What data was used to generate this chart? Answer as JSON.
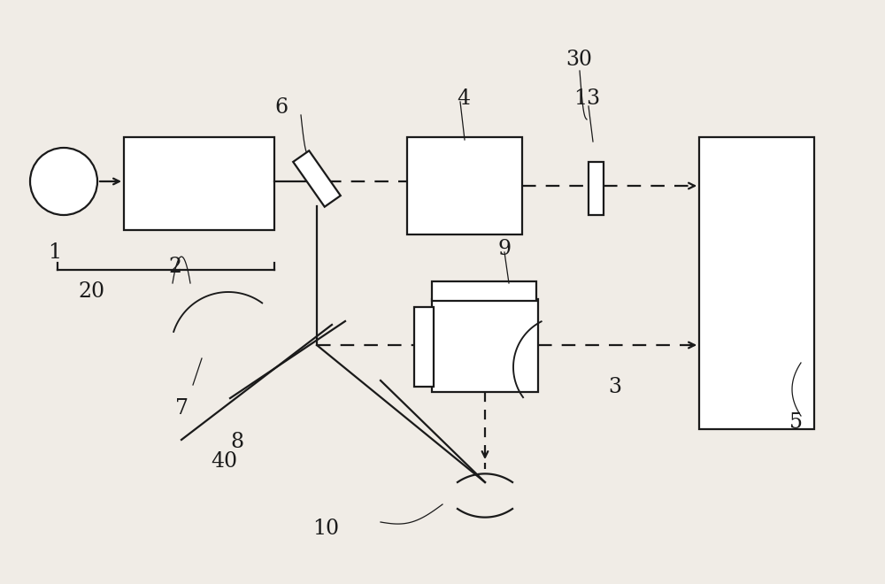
{
  "bg_color": "#f0ece6",
  "line_color": "#1a1a1a",
  "box_color": "#ffffff",
  "fig_width": 10.0,
  "fig_height": 6.6,
  "dpi": 100
}
